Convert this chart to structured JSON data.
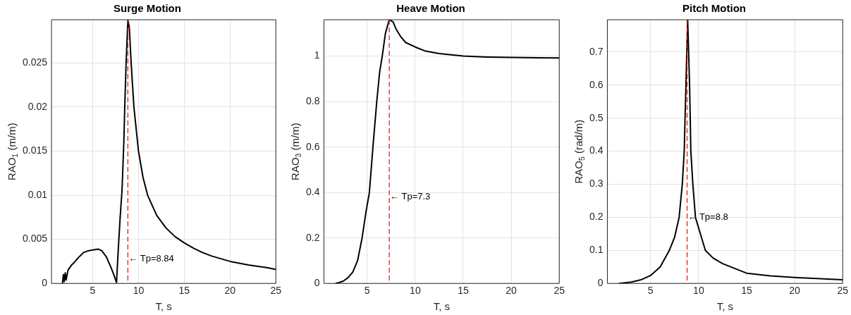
{
  "chart_data": [
    {
      "type": "line",
      "title": "Surge Motion",
      "xlabel": "T, s",
      "ylabel": "RAO$_{1}$ (m/m)",
      "xlim": [
        0.5,
        25
      ],
      "xticks": [
        5,
        10,
        15,
        20,
        25
      ],
      "ylim": [
        0,
        0.0299
      ],
      "yticks": [
        0,
        0.005,
        0.01,
        0.015,
        0.02,
        0.025
      ],
      "grid": true,
      "legend": false,
      "series": [
        {
          "color": "#000000",
          "x": [
            1.7,
            1.8,
            1.9,
            2,
            2.1,
            2.3,
            2.5,
            2.7,
            3,
            3.5,
            4,
            4.5,
            5,
            5.6,
            6,
            6.5,
            7,
            7.3,
            7.6,
            7.8,
            8,
            8.2,
            8.4,
            8.5,
            8.65,
            8.84,
            9,
            9.2,
            9.5,
            10,
            10.5,
            11,
            12,
            13,
            14,
            15,
            16,
            17,
            18,
            19,
            20,
            22,
            24,
            25
          ],
          "values": [
            0,
            0.001,
            0.0002,
            0.0012,
            0.0004,
            0.0015,
            0.0018,
            0.0021,
            0.0024,
            0.003,
            0.0035,
            0.0037,
            0.0038,
            0.0039,
            0.0037,
            0.003,
            0.0018,
            0.001,
            0.0001,
            0.004,
            0.0075,
            0.0105,
            0.016,
            0.02,
            0.025,
            0.0299,
            0.029,
            0.025,
            0.02,
            0.015,
            0.012,
            0.01,
            0.0077,
            0.0063,
            0.0053,
            0.0046,
            0.004,
            0.0035,
            0.0031,
            0.0028,
            0.0025,
            0.0021,
            0.0018,
            0.0016
          ]
        }
      ],
      "ref_lines": [
        {
          "axis": "x",
          "value": 8.84,
          "color": "#ff0000",
          "line_style": "dashed"
        }
      ],
      "annotations": [
        {
          "text": "← Tp=8.84",
          "x": 8.84,
          "y": 0.0028
        }
      ]
    },
    {
      "type": "line",
      "title": "Heave Motion",
      "xlabel": "T, s",
      "ylabel": "RAO$_{3}$ (m/m)",
      "xlim": [
        0.5,
        25
      ],
      "xticks": [
        5,
        10,
        15,
        20,
        25
      ],
      "ylim": [
        0,
        1.16
      ],
      "yticks": [
        0,
        0.2,
        0.4,
        0.6,
        0.8,
        1
      ],
      "grid": true,
      "legend": false,
      "series": [
        {
          "color": "#000000",
          "x": [
            1.7,
            2,
            2.5,
            3,
            3.5,
            4,
            4.47,
            4.9,
            5.23,
            5.6,
            6,
            6.3,
            6.57,
            6.9,
            7.3,
            7.7,
            8,
            8.5,
            9,
            10,
            11,
            12.5,
            15,
            17.5,
            20,
            25
          ],
          "values": [
            0,
            0.003,
            0.01,
            0.025,
            0.05,
            0.1,
            0.2,
            0.32,
            0.4,
            0.6,
            0.8,
            0.93,
            1,
            1.1,
            1.16,
            1.15,
            1.12,
            1.085,
            1.06,
            1.04,
            1.023,
            1.011,
            1,
            0.996,
            0.994,
            0.992
          ]
        }
      ],
      "ref_lines": [
        {
          "axis": "x",
          "value": 7.3,
          "color": "#ff0000",
          "line_style": "dashed"
        }
      ],
      "annotations": [
        {
          "text": "← Tp=7.3",
          "x": 7.3,
          "y": 0.38
        }
      ]
    },
    {
      "type": "line",
      "title": "Pitch Motion",
      "xlabel": "T, s",
      "ylabel": "RAO$_{5}$ (rad/m)",
      "xlim": [
        0.5,
        25
      ],
      "xticks": [
        5,
        10,
        15,
        20,
        25
      ],
      "ylim": [
        0,
        0.798
      ],
      "yticks": [
        0,
        0.1,
        0.2,
        0.3,
        0.4,
        0.5,
        0.6,
        0.7
      ],
      "grid": true,
      "legend": false,
      "series": [
        {
          "color": "#000000",
          "x": [
            1.7,
            3,
            4,
            5,
            6,
            6.95,
            7.5,
            7.97,
            8.3,
            8.5,
            8.68,
            8.86,
            9.06,
            9.19,
            9.4,
            9.67,
            10.7,
            11.5,
            12.5,
            15,
            17.5,
            20,
            25
          ],
          "values": [
            0,
            0.004,
            0.011,
            0.024,
            0.05,
            0.1,
            0.14,
            0.2,
            0.3,
            0.4,
            0.6,
            0.798,
            0.6,
            0.4,
            0.3,
            0.2,
            0.1,
            0.077,
            0.06,
            0.031,
            0.023,
            0.018,
            0.011
          ]
        }
      ],
      "ref_lines": [
        {
          "axis": "x",
          "value": 8.8,
          "color": "#ff0000",
          "line_style": "dashed"
        }
      ],
      "annotations": [
        {
          "text": "← Tp=8.8",
          "x": 8.8,
          "y": 0.2
        }
      ]
    }
  ]
}
